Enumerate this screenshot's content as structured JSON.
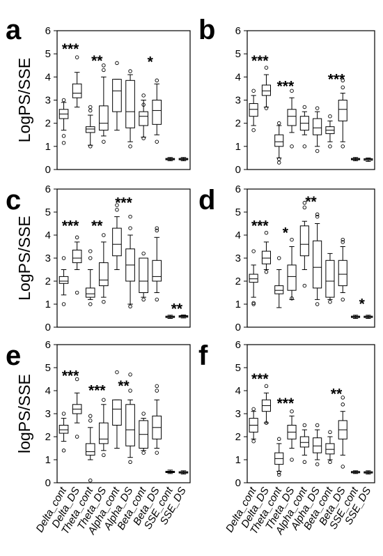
{
  "chart_data": [
    {
      "type": "box",
      "panel": "a",
      "ylabel": "LogPS/SSE",
      "ylim": [
        0,
        6
      ],
      "yticks": [
        0,
        1,
        2,
        3,
        4,
        5,
        6
      ],
      "categories": [
        "Delta_cont",
        "Delta_DS",
        "Theta_cont",
        "Theta_DS",
        "Alpha_cont",
        "Alpha_DS",
        "Beta_cont",
        "Beta_DS",
        "SSE_cont",
        "SSE_DS"
      ],
      "show_category_labels": false,
      "significance": [
        {
          "between": [
            0,
            1
          ],
          "label": "***",
          "y": 5.3
        },
        {
          "between": [
            2,
            3
          ],
          "label": "**",
          "y": 4.8
        },
        {
          "between": [
            6,
            7
          ],
          "label": "*",
          "y": 4.75
        }
      ],
      "boxes": [
        {
          "min": 1.7,
          "q1": 2.2,
          "median": 2.4,
          "q3": 2.6,
          "max": 2.9,
          "outliers": [
            1.15,
            1.45,
            3.0
          ]
        },
        {
          "min": 2.7,
          "q1": 3.1,
          "median": 3.3,
          "q3": 3.7,
          "max": 4.2,
          "outliers": [
            4.85
          ]
        },
        {
          "min": 1.05,
          "q1": 1.6,
          "median": 1.75,
          "q3": 1.85,
          "max": 2.35,
          "outliers": [
            1.0,
            2.55,
            2.7
          ]
        },
        {
          "min": 1.45,
          "q1": 1.7,
          "median": 2.0,
          "q3": 2.75,
          "max": 4.0,
          "outliers": [
            1.2,
            4.3,
            4.5
          ]
        },
        {
          "min": 1.7,
          "q1": 2.5,
          "median": 3.4,
          "q3": 3.9,
          "max": 3.9,
          "outliers": [
            4.6
          ]
        },
        {
          "min": 1.2,
          "q1": 1.8,
          "median": 2.5,
          "q3": 3.85,
          "max": 4.1,
          "outliers": [
            1.0,
            4.25
          ]
        },
        {
          "min": 1.4,
          "q1": 1.9,
          "median": 2.3,
          "q3": 2.5,
          "max": 3.0,
          "outliers": [
            1.35,
            2.8,
            3.2
          ]
        },
        {
          "min": 1.5,
          "q1": 1.95,
          "median": 2.55,
          "q3": 3.0,
          "max": 3.7,
          "outliers": [
            1.2,
            3.85
          ]
        },
        {
          "min": 0.38,
          "q1": 0.42,
          "median": 0.45,
          "q3": 0.48,
          "max": 0.52,
          "outliers": []
        },
        {
          "min": 0.38,
          "q1": 0.42,
          "median": 0.45,
          "q3": 0.48,
          "max": 0.52,
          "outliers": []
        }
      ]
    },
    {
      "type": "box",
      "panel": "b",
      "ylabel": "",
      "ylim": [
        0,
        6
      ],
      "yticks": [
        0,
        1,
        2,
        3,
        4,
        5,
        6
      ],
      "categories": [
        "Delta_cont",
        "Delta_DS",
        "Theta_cont",
        "Theta_DS",
        "Alpha_cont",
        "Alpha_DS",
        "Beta_cont",
        "Beta_DS",
        "SSE_cont",
        "SSE_DS"
      ],
      "show_category_labels": false,
      "significance": [
        {
          "between": [
            0,
            1
          ],
          "label": "***",
          "y": 4.8
        },
        {
          "between": [
            2,
            3
          ],
          "label": "***",
          "y": 3.7
        },
        {
          "between": [
            6,
            7
          ],
          "label": "***",
          "y": 4.0
        }
      ],
      "boxes": [
        {
          "min": 1.9,
          "q1": 2.3,
          "median": 2.6,
          "q3": 2.85,
          "max": 3.2,
          "outliers": [
            1.7,
            3.4
          ]
        },
        {
          "min": 2.7,
          "q1": 3.2,
          "median": 3.4,
          "q3": 3.65,
          "max": 4.1,
          "outliers": [
            2.65,
            4.4
          ]
        },
        {
          "min": 0.5,
          "q1": 1.0,
          "median": 1.2,
          "q3": 1.5,
          "max": 1.9,
          "outliers": [
            0.3,
            0.45,
            2.0
          ]
        },
        {
          "min": 1.6,
          "q1": 1.9,
          "median": 2.3,
          "q3": 2.6,
          "max": 3.1,
          "outliers": [
            1.0,
            3.4
          ]
        },
        {
          "min": 1.5,
          "q1": 1.7,
          "median": 2.0,
          "q3": 2.3,
          "max": 2.5,
          "outliers": [
            1.0,
            2.7
          ]
        },
        {
          "min": 1.0,
          "q1": 1.5,
          "median": 1.8,
          "q3": 2.2,
          "max": 2.5,
          "outliers": [
            0.8,
            2.65
          ]
        },
        {
          "min": 1.2,
          "q1": 1.55,
          "median": 1.7,
          "q3": 1.85,
          "max": 2.1,
          "outliers": [
            1.0,
            2.3
          ]
        },
        {
          "min": 1.2,
          "q1": 2.1,
          "median": 2.6,
          "q3": 3.0,
          "max": 3.3,
          "outliers": [
            1.0,
            3.55,
            3.85
          ]
        },
        {
          "min": 0.38,
          "q1": 0.42,
          "median": 0.45,
          "q3": 0.48,
          "max": 0.52,
          "outliers": []
        },
        {
          "min": 0.35,
          "q1": 0.4,
          "median": 0.43,
          "q3": 0.47,
          "max": 0.5,
          "outliers": []
        }
      ]
    },
    {
      "type": "box",
      "panel": "c",
      "ylabel": "LogPS/SSE",
      "ylim": [
        0,
        6
      ],
      "yticks": [
        0,
        1,
        2,
        3,
        4,
        5,
        6
      ],
      "categories": [
        "Delta_cont",
        "Delta_DS",
        "Theta_cont",
        "Theta_DS",
        "Alpha_cont",
        "Alpha_DS",
        "Beta_cont",
        "Beta_DS",
        "SSE_cont",
        "SSE_DS"
      ],
      "show_category_labels": false,
      "significance": [
        {
          "between": [
            0,
            1
          ],
          "label": "***",
          "y": 4.5
        },
        {
          "between": [
            2,
            3
          ],
          "label": "**",
          "y": 4.5
        },
        {
          "between": [
            4,
            5
          ],
          "label": "***",
          "y": 5.5
        },
        {
          "between": [
            8,
            9
          ],
          "label": "**",
          "y": 0.9
        }
      ],
      "boxes": [
        {
          "min": 1.4,
          "q1": 1.9,
          "median": 2.0,
          "q3": 2.2,
          "max": 2.5,
          "outliers": [
            1.0,
            3.0
          ]
        },
        {
          "min": 2.5,
          "q1": 2.8,
          "median": 3.0,
          "q3": 3.35,
          "max": 3.7,
          "outliers": [
            1.5,
            3.9
          ]
        },
        {
          "min": 1.2,
          "q1": 1.3,
          "median": 1.45,
          "q3": 1.7,
          "max": 2.5,
          "outliers": [
            1.0,
            3.0,
            3.3
          ]
        },
        {
          "min": 1.3,
          "q1": 1.8,
          "median": 2.05,
          "q3": 2.8,
          "max": 3.7,
          "outliers": [
            1.1,
            4.0
          ]
        },
        {
          "min": 2.5,
          "q1": 3.1,
          "median": 3.6,
          "q3": 4.3,
          "max": 4.8,
          "outliers": [
            5.1,
            5.3
          ]
        },
        {
          "min": 1.0,
          "q1": 2.0,
          "median": 2.7,
          "q3": 3.4,
          "max": 4.0,
          "outliers": [
            0.9,
            4.3,
            4.8
          ]
        },
        {
          "min": 1.3,
          "q1": 1.5,
          "median": 2.0,
          "q3": 3.0,
          "max": 3.0,
          "outliers": [
            1.2,
            3.2
          ]
        },
        {
          "min": 1.5,
          "q1": 2.0,
          "median": 2.2,
          "q3": 2.9,
          "max": 3.9,
          "outliers": [
            1.2,
            4.2,
            4.3
          ]
        },
        {
          "min": 0.38,
          "q1": 0.42,
          "median": 0.45,
          "q3": 0.48,
          "max": 0.52,
          "outliers": []
        },
        {
          "min": 0.4,
          "q1": 0.43,
          "median": 0.47,
          "q3": 0.5,
          "max": 0.53,
          "outliers": []
        }
      ]
    },
    {
      "type": "box",
      "panel": "d",
      "ylabel": "",
      "ylim": [
        0,
        6
      ],
      "yticks": [
        0,
        1,
        2,
        3,
        4,
        5,
        6
      ],
      "categories": [
        "Delta_cont",
        "Delta_DS",
        "Theta_cont",
        "Theta_DS",
        "Alpha_cont",
        "Alpha_DS",
        "Beta_cont",
        "Beta_DS",
        "SSE_cont",
        "SSE_DS"
      ],
      "show_category_labels": false,
      "significance": [
        {
          "between": [
            0,
            1
          ],
          "label": "***",
          "y": 4.5
        },
        {
          "between": [
            2,
            3
          ],
          "label": "*",
          "y": 4.2
        },
        {
          "between": [
            4,
            5
          ],
          "label": "**",
          "y": 5.55
        },
        {
          "between": [
            8,
            9
          ],
          "label": "*",
          "y": 1.1
        }
      ],
      "boxes": [
        {
          "min": 1.3,
          "q1": 1.95,
          "median": 2.1,
          "q3": 2.3,
          "max": 2.7,
          "outliers": [
            1.0,
            1.05,
            3.3
          ]
        },
        {
          "min": 2.5,
          "q1": 2.75,
          "median": 3.0,
          "q3": 3.3,
          "max": 3.7,
          "outliers": [
            2.4,
            4.1
          ]
        },
        {
          "min": 0.85,
          "q1": 1.45,
          "median": 1.6,
          "q3": 1.8,
          "max": 2.5,
          "outliers": [
            3.0
          ]
        },
        {
          "min": 1.2,
          "q1": 1.6,
          "median": 2.2,
          "q3": 2.7,
          "max": 3.5,
          "outliers": [
            1.25,
            3.8
          ]
        },
        {
          "min": 2.5,
          "q1": 3.1,
          "median": 3.6,
          "q3": 4.4,
          "max": 4.6,
          "outliers": [
            1.8,
            5.2,
            5.4
          ]
        },
        {
          "min": 1.2,
          "q1": 1.7,
          "median": 2.6,
          "q3": 3.75,
          "max": 4.5,
          "outliers": [
            1.0,
            4.8,
            4.9
          ]
        },
        {
          "min": 1.2,
          "q1": 1.3,
          "median": 2.0,
          "q3": 2.9,
          "max": 3.2,
          "outliers": [
            1.1
          ]
        },
        {
          "min": 1.5,
          "q1": 1.8,
          "median": 2.3,
          "q3": 2.9,
          "max": 3.5,
          "outliers": [
            1.2,
            3.7,
            3.8
          ]
        },
        {
          "min": 0.38,
          "q1": 0.42,
          "median": 0.45,
          "q3": 0.48,
          "max": 0.52,
          "outliers": []
        },
        {
          "min": 0.38,
          "q1": 0.42,
          "median": 0.45,
          "q3": 0.48,
          "max": 0.52,
          "outliers": []
        }
      ]
    },
    {
      "type": "box",
      "panel": "e",
      "ylabel": "logPS/SSE",
      "ylim": [
        0,
        6
      ],
      "yticks": [
        0,
        1,
        2,
        3,
        4,
        5,
        6
      ],
      "categories": [
        "Delta_cont",
        "Delta_DS",
        "Theta_cont",
        "Theta_DS",
        "Alpha_cont",
        "Alpha_DS",
        "Beta_cont",
        "Beta_DS",
        "SSE_cont",
        "SSE_DS"
      ],
      "show_category_labels": true,
      "significance": [
        {
          "between": [
            0,
            1
          ],
          "label": "***",
          "y": 4.75
        },
        {
          "between": [
            2,
            3
          ],
          "label": "***",
          "y": 4.1
        },
        {
          "between": [
            4,
            5
          ],
          "label": "**",
          "y": 4.3
        }
      ],
      "boxes": [
        {
          "min": 1.8,
          "q1": 2.15,
          "median": 2.3,
          "q3": 2.5,
          "max": 2.8,
          "outliers": [
            1.4,
            3.0
          ]
        },
        {
          "min": 2.6,
          "q1": 3.0,
          "median": 3.2,
          "q3": 3.4,
          "max": 3.9,
          "outliers": [
            2.0,
            4.5
          ]
        },
        {
          "min": 1.0,
          "q1": 1.2,
          "median": 1.35,
          "q3": 1.7,
          "max": 2.4,
          "outliers": [
            0.1,
            2.7,
            2.9
          ]
        },
        {
          "min": 1.4,
          "q1": 1.7,
          "median": 1.9,
          "q3": 2.6,
          "max": 3.4,
          "outliers": [
            1.2,
            3.6
          ]
        },
        {
          "min": 1.5,
          "q1": 2.5,
          "median": 3.2,
          "q3": 3.6,
          "max": 3.6,
          "outliers": [
            4.8
          ]
        },
        {
          "min": 1.1,
          "q1": 1.6,
          "median": 2.3,
          "q3": 3.4,
          "max": 3.6,
          "outliers": [
            0.9,
            4.0,
            4.7
          ]
        },
        {
          "min": 1.4,
          "q1": 1.5,
          "median": 2.1,
          "q3": 2.7,
          "max": 2.8,
          "outliers": [
            1.3,
            3.0
          ]
        },
        {
          "min": 1.5,
          "q1": 1.9,
          "median": 2.4,
          "q3": 2.9,
          "max": 3.6,
          "outliers": [
            1.3,
            4.0,
            4.2
          ]
        },
        {
          "min": 0.4,
          "q1": 0.44,
          "median": 0.47,
          "q3": 0.5,
          "max": 0.55,
          "outliers": []
        },
        {
          "min": 0.38,
          "q1": 0.42,
          "median": 0.45,
          "q3": 0.48,
          "max": 0.52,
          "outliers": []
        }
      ]
    },
    {
      "type": "box",
      "panel": "f",
      "ylabel": "",
      "ylim": [
        0,
        6
      ],
      "yticks": [
        0,
        1,
        2,
        3,
        4,
        5,
        6
      ],
      "categories": [
        "Delta_cont",
        "Delta_DS",
        "Theta_cont",
        "Theta_DS",
        "Alpha_cont",
        "Alpha_DS",
        "Beta_cont",
        "Beta_DS",
        "SSE_cont",
        "SSE_DS"
      ],
      "show_category_labels": true,
      "significance": [
        {
          "between": [
            0,
            1
          ],
          "label": "***",
          "y": 4.6
        },
        {
          "between": [
            2,
            3
          ],
          "label": "***",
          "y": 3.55
        },
        {
          "between": [
            6,
            7
          ],
          "label": "**",
          "y": 3.95
        }
      ],
      "boxes": [
        {
          "min": 1.9,
          "q1": 2.2,
          "median": 2.5,
          "q3": 2.8,
          "max": 3.1,
          "outliers": [
            1.8,
            3.2
          ]
        },
        {
          "min": 2.6,
          "q1": 3.1,
          "median": 3.35,
          "q3": 3.6,
          "max": 3.9,
          "outliers": [
            2.6,
            4.2
          ]
        },
        {
          "min": 0.5,
          "q1": 0.8,
          "median": 1.05,
          "q3": 1.3,
          "max": 1.7,
          "outliers": [
            0.35,
            0.45,
            1.9
          ]
        },
        {
          "min": 1.5,
          "q1": 1.9,
          "median": 2.2,
          "q3": 2.5,
          "max": 2.9,
          "outliers": [
            1.0,
            3.1
          ]
        },
        {
          "min": 1.2,
          "q1": 1.55,
          "median": 1.75,
          "q3": 2.0,
          "max": 2.3,
          "outliers": [
            0.9,
            2.5
          ]
        },
        {
          "min": 1.0,
          "q1": 1.3,
          "median": 1.6,
          "q3": 1.95,
          "max": 2.3,
          "outliers": [
            0.8,
            2.5
          ]
        },
        {
          "min": 1.0,
          "q1": 1.25,
          "median": 1.45,
          "q3": 1.7,
          "max": 2.0,
          "outliers": [
            0.9,
            2.2
          ]
        },
        {
          "min": 1.2,
          "q1": 1.9,
          "median": 2.3,
          "q3": 2.7,
          "max": 3.1,
          "outliers": [
            0.7,
            3.4,
            3.7
          ]
        },
        {
          "min": 0.4,
          "q1": 0.43,
          "median": 0.46,
          "q3": 0.49,
          "max": 0.52,
          "outliers": []
        },
        {
          "min": 0.38,
          "q1": 0.42,
          "median": 0.45,
          "q3": 0.48,
          "max": 0.52,
          "outliers": []
        }
      ]
    }
  ]
}
